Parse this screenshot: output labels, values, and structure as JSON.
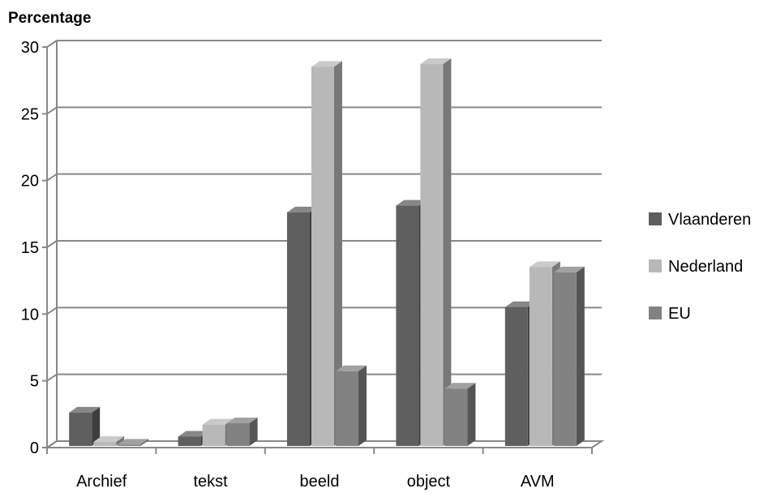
{
  "chart_data": {
    "type": "bar",
    "ylabel": "Percentage",
    "categories": [
      "Archief",
      "tekst",
      "beeld",
      "object",
      "AVM"
    ],
    "series": [
      {
        "name": "Vlaanderen",
        "color": "#5f5f5f",
        "values": [
          2.5,
          0.7,
          17.5,
          18.0,
          10.4
        ]
      },
      {
        "name": "Nederland",
        "color": "#b8b8b8",
        "values": [
          0.3,
          1.6,
          28.4,
          28.6,
          13.4
        ]
      },
      {
        "name": "EU",
        "color": "#828282",
        "values": [
          0.1,
          1.7,
          5.6,
          4.3,
          13.0
        ]
      }
    ],
    "ylim": [
      0,
      30
    ],
    "yticks": [
      0,
      5,
      10,
      15,
      20,
      25,
      30
    ],
    "grid": true,
    "legend_position": "right",
    "bar_style": "3d"
  }
}
